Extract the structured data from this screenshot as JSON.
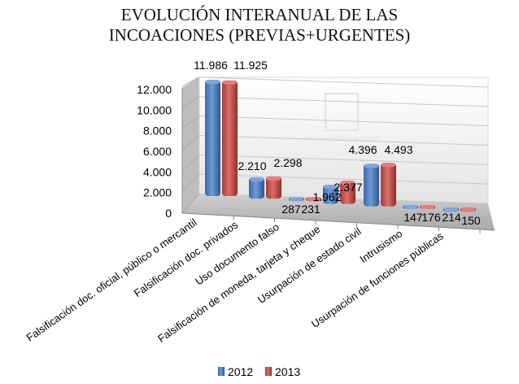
{
  "chart_data": {
    "type": "bar",
    "style": "3d-clustered",
    "title_lines": [
      "EVOLUCIÓN INTERANUAL DE LAS",
      "INCOACIONES (PREVIAS+URGENTES)"
    ],
    "categories": [
      "Falsificación doc. oficial, público o mercantil",
      "Falsificación doc. privados",
      "Uso documento falso",
      "Falsificación de moneda, tarjeta y cheque",
      "Usurpación de estado civil",
      "Intrusismo",
      "Usurpación de funciones públicas"
    ],
    "series": [
      {
        "name": "2012",
        "color": "#4f81bd",
        "values": [
          11986,
          2210,
          287,
          1962,
          4396,
          147,
          214
        ],
        "labels": [
          "11.986",
          "2.210",
          "287",
          "1.962",
          "4.396",
          "147",
          "214"
        ]
      },
      {
        "name": "2013",
        "color": "#c0504d",
        "values": [
          11925,
          2298,
          231,
          2377,
          4493,
          176,
          150
        ],
        "labels": [
          "11.925",
          "2.298",
          "231",
          "2.377",
          "4.493",
          "176",
          "150"
        ]
      }
    ],
    "ylim": [
      0,
      12000
    ],
    "yticks": [
      0,
      2000,
      4000,
      6000,
      8000,
      10000,
      12000
    ],
    "ytick_labels": [
      "0",
      "2.000",
      "4.000",
      "6.000",
      "8.000",
      "10.000",
      "12.000"
    ],
    "grid": true,
    "legend_position": "bottom",
    "watermark": "FISCALÍA GENERAL DEL ESTADO"
  }
}
